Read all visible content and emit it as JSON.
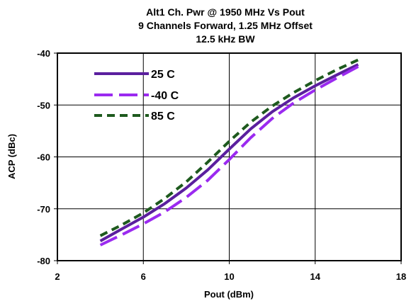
{
  "chart_data": {
    "type": "line",
    "title_lines": [
      "Alt1 Ch. Pwr @ 1950 MHz Vs Pout",
      "9 Channels Forward, 1.25 MHz Offset",
      "12.5 kHz BW"
    ],
    "xlabel": "Pout (dBm)",
    "ylabel": "ACP (dBc)",
    "xlim": [
      2,
      18
    ],
    "ylim": [
      -80,
      -40
    ],
    "xticks": [
      2,
      6,
      10,
      14,
      18
    ],
    "yticks": [
      -80,
      -70,
      -60,
      -50,
      -40
    ],
    "grid": true,
    "legend_position": "top-left",
    "series": [
      {
        "name": "25 C",
        "color": "#5B1F9E",
        "dash": "solid",
        "x": [
          4,
          5,
          6,
          7,
          8,
          9,
          10,
          11,
          12,
          13,
          14,
          15,
          16
        ],
        "y": [
          -76.2,
          -73.9,
          -71.6,
          -69.0,
          -66.0,
          -62.5,
          -58.5,
          -54.6,
          -51.3,
          -48.6,
          -46.3,
          -44.2,
          -42.2
        ]
      },
      {
        "name": "-40 C",
        "color": "#9B2AF0",
        "dash": "long-dash",
        "x": [
          4,
          5,
          6,
          7,
          8,
          9,
          10,
          11,
          12,
          13,
          14,
          15,
          16
        ],
        "y": [
          -77.0,
          -75.0,
          -72.9,
          -70.6,
          -67.8,
          -64.5,
          -60.5,
          -56.3,
          -52.6,
          -49.6,
          -47.1,
          -44.8,
          -42.6
        ]
      },
      {
        "name": "85 C",
        "color": "#1E5A1E",
        "dash": "short-dash",
        "x": [
          4,
          5,
          6,
          7,
          8,
          9,
          10,
          11,
          12,
          13,
          14,
          15,
          16
        ],
        "y": [
          -75.2,
          -73.1,
          -70.8,
          -68.0,
          -64.8,
          -61.0,
          -57.0,
          -53.3,
          -50.2,
          -47.6,
          -45.3,
          -43.2,
          -41.3
        ]
      }
    ]
  }
}
